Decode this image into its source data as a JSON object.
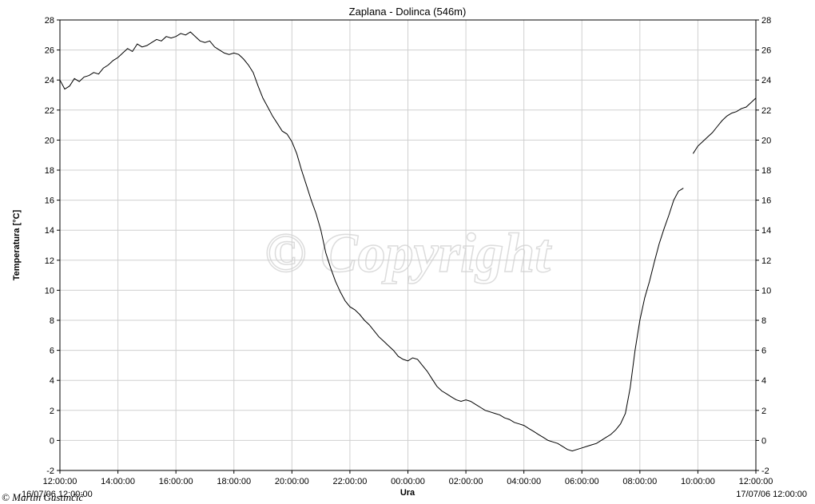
{
  "chart_data": {
    "type": "line",
    "title": "Zaplana - Dolinca (546m)",
    "xlabel": "Ura",
    "ylabel": "Temperatura [°C]",
    "ylim": [
      -2,
      28
    ],
    "y_ticks": [
      -2,
      0,
      2,
      4,
      6,
      8,
      10,
      12,
      14,
      16,
      18,
      20,
      22,
      24,
      26,
      28
    ],
    "xlim_hours": [
      0,
      24
    ],
    "x_ticks": [
      "12:00:00",
      "14:00:00",
      "16:00:00",
      "18:00:00",
      "20:00:00",
      "22:00:00",
      "00:00:00",
      "02:00:00",
      "04:00:00",
      "06:00:00",
      "08:00:00",
      "10:00:00",
      "12:00:00"
    ],
    "x_start_label": "16/07/06 12:00:00",
    "x_end_label": "17/07/06 12:00:00",
    "grid": true,
    "legend": "none",
    "line_color": "#000000",
    "series": [
      {
        "points": [
          [
            "12:00",
            24.0
          ],
          [
            "12:10",
            23.4
          ],
          [
            "12:20",
            23.6
          ],
          [
            "12:30",
            24.1
          ],
          [
            "12:40",
            23.9
          ],
          [
            "12:50",
            24.2
          ],
          [
            "13:00",
            24.3
          ],
          [
            "13:10",
            24.5
          ],
          [
            "13:20",
            24.4
          ],
          [
            "13:30",
            24.8
          ],
          [
            "13:40",
            25.0
          ],
          [
            "13:50",
            25.3
          ],
          [
            "14:00",
            25.5
          ],
          [
            "14:10",
            25.8
          ],
          [
            "14:20",
            26.1
          ],
          [
            "14:30",
            25.9
          ],
          [
            "14:40",
            26.4
          ],
          [
            "14:50",
            26.2
          ],
          [
            "15:00",
            26.3
          ],
          [
            "15:10",
            26.5
          ],
          [
            "15:20",
            26.7
          ],
          [
            "15:30",
            26.6
          ],
          [
            "15:40",
            26.9
          ],
          [
            "15:50",
            26.8
          ],
          [
            "16:00",
            26.9
          ],
          [
            "16:10",
            27.1
          ],
          [
            "16:20",
            27.0
          ],
          [
            "16:30",
            27.2
          ],
          [
            "16:40",
            26.9
          ],
          [
            "16:50",
            26.6
          ],
          [
            "17:00",
            26.5
          ],
          [
            "17:10",
            26.6
          ],
          [
            "17:20",
            26.2
          ],
          [
            "17:30",
            26.0
          ],
          [
            "17:40",
            25.8
          ],
          [
            "17:50",
            25.7
          ],
          [
            "18:00",
            25.8
          ],
          [
            "18:10",
            25.7
          ],
          [
            "18:20",
            25.4
          ],
          [
            "18:30",
            25.0
          ],
          [
            "18:40",
            24.5
          ],
          [
            "18:50",
            23.6
          ],
          [
            "19:00",
            22.8
          ],
          [
            "19:10",
            22.2
          ],
          [
            "19:20",
            21.6
          ],
          [
            "19:30",
            21.1
          ],
          [
            "19:40",
            20.6
          ],
          [
            "19:50",
            20.4
          ],
          [
            "20:00",
            19.9
          ],
          [
            "20:10",
            19.1
          ],
          [
            "20:20",
            18.0
          ],
          [
            "20:30",
            17.0
          ],
          [
            "20:40",
            16.0
          ],
          [
            "20:50",
            15.1
          ],
          [
            "21:00",
            14.0
          ],
          [
            "21:10",
            12.5
          ],
          [
            "21:20",
            11.5
          ],
          [
            "21:30",
            10.6
          ],
          [
            "21:40",
            9.9
          ],
          [
            "21:50",
            9.3
          ],
          [
            "22:00",
            8.9
          ],
          [
            "22:10",
            8.7
          ],
          [
            "22:20",
            8.4
          ],
          [
            "22:30",
            8.0
          ],
          [
            "22:40",
            7.7
          ],
          [
            "22:50",
            7.3
          ],
          [
            "23:00",
            6.9
          ],
          [
            "23:10",
            6.6
          ],
          [
            "23:20",
            6.3
          ],
          [
            "23:30",
            6.0
          ],
          [
            "23:40",
            5.6
          ],
          [
            "23:50",
            5.4
          ],
          [
            "00:00",
            5.3
          ],
          [
            "00:10",
            5.5
          ],
          [
            "00:20",
            5.4
          ],
          [
            "00:30",
            5.0
          ],
          [
            "00:40",
            4.6
          ],
          [
            "00:50",
            4.1
          ],
          [
            "01:00",
            3.6
          ],
          [
            "01:10",
            3.3
          ],
          [
            "01:20",
            3.1
          ],
          [
            "01:30",
            2.9
          ],
          [
            "01:40",
            2.7
          ],
          [
            "01:50",
            2.6
          ],
          [
            "02:00",
            2.7
          ],
          [
            "02:10",
            2.6
          ],
          [
            "02:20",
            2.4
          ],
          [
            "02:30",
            2.2
          ],
          [
            "02:40",
            2.0
          ],
          [
            "02:50",
            1.9
          ],
          [
            "03:00",
            1.8
          ],
          [
            "03:10",
            1.7
          ],
          [
            "03:20",
            1.5
          ],
          [
            "03:30",
            1.4
          ],
          [
            "03:40",
            1.2
          ],
          [
            "03:50",
            1.1
          ],
          [
            "04:00",
            1.0
          ],
          [
            "04:10",
            0.8
          ],
          [
            "04:20",
            0.6
          ],
          [
            "04:30",
            0.4
          ],
          [
            "04:40",
            0.2
          ],
          [
            "04:50",
            0.0
          ],
          [
            "05:00",
            -0.1
          ],
          [
            "05:10",
            -0.2
          ],
          [
            "05:20",
            -0.4
          ],
          [
            "05:30",
            -0.6
          ],
          [
            "05:40",
            -0.7
          ],
          [
            "05:50",
            -0.6
          ],
          [
            "06:00",
            -0.5
          ],
          [
            "06:10",
            -0.4
          ],
          [
            "06:20",
            -0.3
          ],
          [
            "06:30",
            -0.2
          ],
          [
            "06:40",
            0.0
          ],
          [
            "06:50",
            0.2
          ],
          [
            "07:00",
            0.4
          ],
          [
            "07:10",
            0.7
          ],
          [
            "07:20",
            1.1
          ],
          [
            "07:30",
            1.8
          ],
          [
            "07:40",
            3.5
          ],
          [
            "07:50",
            6.0
          ],
          [
            "08:00",
            8.0
          ],
          [
            "08:10",
            9.5
          ],
          [
            "08:20",
            10.6
          ],
          [
            "08:30",
            11.9
          ],
          [
            "08:40",
            13.1
          ],
          [
            "08:50",
            14.1
          ],
          [
            "09:00",
            15.0
          ],
          [
            "09:10",
            16.0
          ],
          [
            "09:20",
            16.6
          ],
          [
            "09:30",
            16.8
          ],
          null,
          [
            "09:50",
            19.1
          ],
          [
            "10:00",
            19.6
          ],
          [
            "10:10",
            19.9
          ],
          [
            "10:20",
            20.2
          ],
          [
            "10:30",
            20.5
          ],
          [
            "10:40",
            20.9
          ],
          [
            "10:50",
            21.3
          ],
          [
            "11:00",
            21.6
          ],
          [
            "11:10",
            21.8
          ],
          [
            "11:20",
            21.9
          ],
          [
            "11:30",
            22.1
          ],
          [
            "11:40",
            22.2
          ],
          [
            "11:50",
            22.5
          ],
          [
            "12:00",
            22.8
          ]
        ]
      }
    ]
  },
  "watermark": "© Copyright",
  "credit": "© Martin Gustinčič"
}
